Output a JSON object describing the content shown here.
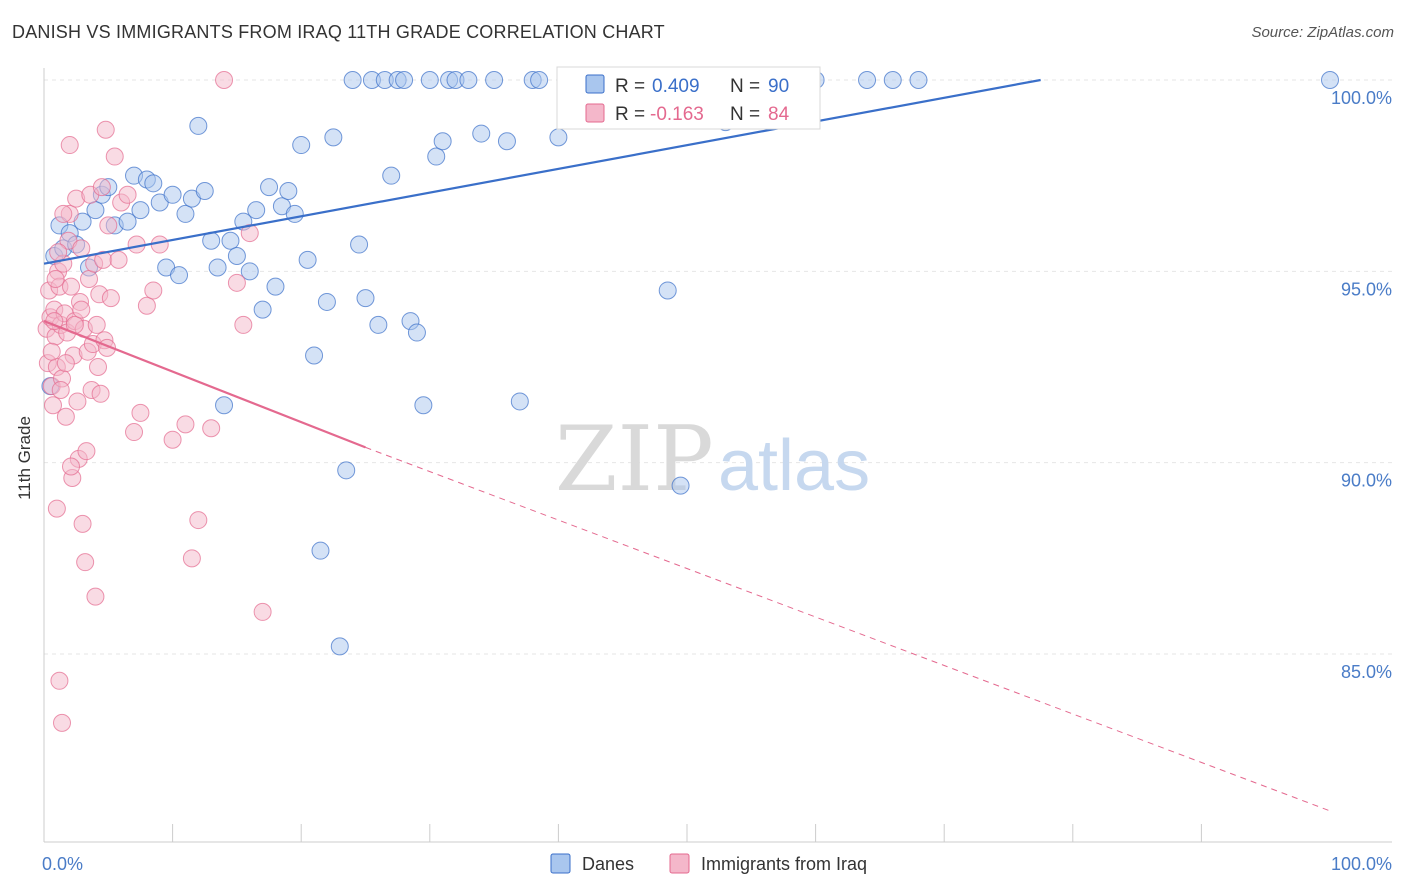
{
  "title": "DANISH VS IMMIGRANTS FROM IRAQ 11TH GRADE CORRELATION CHART",
  "source": "Source: ZipAtlas.com",
  "watermark": {
    "zip": "ZIP",
    "atlas": "atlas"
  },
  "colors": {
    "blue": "#3a6fc9",
    "blue_fill": "#a9c6ee",
    "pink": "#e4698f",
    "pink_fill": "#f4b7ca",
    "grid": "#e6e6e6"
  },
  "chart_data": {
    "type": "scatter",
    "title": "DANISH VS IMMIGRANTS FROM IRAQ 11TH GRADE CORRELATION CHART",
    "xlabel": "",
    "ylabel": "11th Grade",
    "xlim": [
      0,
      100
    ],
    "ylim": [
      80.7,
      100.7
    ],
    "x_ticks": [
      "0.0%",
      "100.0%"
    ],
    "y_ticks": [
      {
        "value": 100,
        "label": "100.0%"
      },
      {
        "value": 95,
        "label": "95.0%"
      },
      {
        "value": 90,
        "label": "90.0%"
      },
      {
        "value": 85,
        "label": "85.0%"
      }
    ],
    "grid": true,
    "legend_placement": "top-center",
    "legend": [
      {
        "r_label": "R =",
        "r_value": "0.409",
        "n_label": "N =",
        "n_value": "90"
      },
      {
        "r_label": "R =",
        "r_value": "-0.163",
        "n_label": "N =",
        "n_value": "84"
      }
    ],
    "series": [
      {
        "name": "Danes",
        "color": "#3a6fc9",
        "trend": {
          "x0": 0,
          "y0": 95.2,
          "x1": 77.5,
          "y1": 100.0,
          "dashed_to": null
        },
        "points": [
          [
            0.5,
            92.0
          ],
          [
            0.8,
            95.4
          ],
          [
            1.2,
            96.2
          ],
          [
            1.5,
            95.6
          ],
          [
            2.0,
            96.0
          ],
          [
            2.5,
            95.7
          ],
          [
            3.0,
            96.3
          ],
          [
            3.5,
            95.1
          ],
          [
            4.0,
            96.6
          ],
          [
            4.5,
            97.0
          ],
          [
            5.0,
            97.2
          ],
          [
            5.5,
            96.2
          ],
          [
            6.5,
            96.3
          ],
          [
            7.0,
            97.5
          ],
          [
            7.5,
            96.6
          ],
          [
            8.0,
            97.4
          ],
          [
            8.5,
            97.3
          ],
          [
            9.0,
            96.8
          ],
          [
            9.5,
            95.1
          ],
          [
            10.0,
            97.0
          ],
          [
            10.5,
            94.9
          ],
          [
            11.0,
            96.5
          ],
          [
            11.5,
            96.9
          ],
          [
            12.0,
            98.8
          ],
          [
            12.5,
            97.1
          ],
          [
            13.0,
            95.8
          ],
          [
            13.5,
            95.1
          ],
          [
            14.0,
            91.5
          ],
          [
            14.5,
            95.8
          ],
          [
            15.0,
            95.4
          ],
          [
            15.5,
            96.3
          ],
          [
            16.0,
            95.0
          ],
          [
            16.5,
            96.6
          ],
          [
            17.0,
            94.0
          ],
          [
            17.5,
            97.2
          ],
          [
            18.0,
            94.6
          ],
          [
            18.5,
            96.7
          ],
          [
            19.0,
            97.1
          ],
          [
            19.5,
            96.5
          ],
          [
            20.0,
            98.3
          ],
          [
            20.5,
            95.3
          ],
          [
            21.0,
            92.8
          ],
          [
            21.5,
            87.7
          ],
          [
            22.0,
            94.2
          ],
          [
            22.5,
            98.5
          ],
          [
            23.0,
            85.2
          ],
          [
            23.5,
            89.8
          ],
          [
            24.0,
            100.0
          ],
          [
            24.5,
            95.7
          ],
          [
            25.0,
            94.3
          ],
          [
            25.5,
            100.0
          ],
          [
            26.0,
            93.6
          ],
          [
            26.5,
            100.0
          ],
          [
            27.0,
            97.5
          ],
          [
            27.5,
            100.0
          ],
          [
            28.0,
            100.0
          ],
          [
            28.5,
            93.7
          ],
          [
            29.0,
            93.4
          ],
          [
            29.5,
            91.5
          ],
          [
            30.0,
            100.0
          ],
          [
            30.5,
            98.0
          ],
          [
            31.0,
            98.4
          ],
          [
            31.5,
            100.0
          ],
          [
            32.0,
            100.0
          ],
          [
            33.0,
            100.0
          ],
          [
            34.0,
            98.6
          ],
          [
            35.0,
            100.0
          ],
          [
            36.0,
            98.4
          ],
          [
            37.0,
            91.6
          ],
          [
            38.0,
            100.0
          ],
          [
            38.5,
            100.0
          ],
          [
            40.0,
            98.5
          ],
          [
            42.0,
            100.0
          ],
          [
            43.0,
            100.0
          ],
          [
            44.0,
            100.0
          ],
          [
            45.0,
            100.0
          ],
          [
            47.0,
            100.0
          ],
          [
            48.0,
            100.0
          ],
          [
            49.0,
            100.0
          ],
          [
            48.5,
            94.5
          ],
          [
            49.5,
            89.4
          ],
          [
            50.5,
            100.0
          ],
          [
            53.0,
            98.9
          ],
          [
            54.0,
            100.0
          ],
          [
            56.0,
            100.0
          ],
          [
            60.0,
            100.0
          ],
          [
            64.0,
            100.0
          ],
          [
            66.0,
            100.0
          ],
          [
            68.0,
            100.0
          ],
          [
            100.0,
            100.0
          ]
        ]
      },
      {
        "name": "Immigrants from Iraq",
        "color": "#e4698f",
        "trend": {
          "x0": 0,
          "y0": 93.7,
          "x1": 25.0,
          "y1": 90.4,
          "dashed_to": {
            "x": 100,
            "y": 80.9
          }
        },
        "points": [
          [
            0.2,
            93.5
          ],
          [
            0.3,
            92.6
          ],
          [
            0.4,
            94.5
          ],
          [
            0.5,
            93.8
          ],
          [
            0.6,
            92.0
          ],
          [
            0.7,
            91.5
          ],
          [
            0.8,
            94.0
          ],
          [
            0.9,
            93.3
          ],
          [
            1.0,
            92.5
          ],
          [
            1.1,
            95.0
          ],
          [
            1.2,
            94.6
          ],
          [
            1.3,
            93.6
          ],
          [
            1.4,
            92.2
          ],
          [
            1.5,
            95.2
          ],
          [
            1.6,
            93.9
          ],
          [
            1.7,
            91.2
          ],
          [
            1.8,
            93.4
          ],
          [
            1.9,
            95.8
          ],
          [
            2.0,
            96.5
          ],
          [
            2.1,
            94.6
          ],
          [
            2.2,
            89.6
          ],
          [
            2.3,
            92.8
          ],
          [
            2.4,
            93.7
          ],
          [
            2.5,
            96.9
          ],
          [
            2.6,
            91.6
          ],
          [
            2.7,
            90.1
          ],
          [
            2.8,
            94.2
          ],
          [
            2.9,
            95.6
          ],
          [
            3.0,
            88.4
          ],
          [
            3.1,
            93.5
          ],
          [
            3.2,
            87.4
          ],
          [
            3.3,
            90.3
          ],
          [
            3.4,
            92.9
          ],
          [
            3.5,
            94.8
          ],
          [
            3.6,
            97.0
          ],
          [
            3.7,
            91.9
          ],
          [
            3.8,
            93.1
          ],
          [
            3.9,
            95.2
          ],
          [
            4.0,
            86.5
          ],
          [
            4.1,
            93.6
          ],
          [
            4.2,
            92.5
          ],
          [
            4.3,
            94.4
          ],
          [
            4.4,
            91.8
          ],
          [
            4.5,
            97.2
          ],
          [
            4.6,
            95.3
          ],
          [
            4.7,
            93.2
          ],
          [
            4.8,
            98.7
          ],
          [
            4.9,
            93.0
          ],
          [
            5.0,
            96.2
          ],
          [
            5.2,
            94.3
          ],
          [
            5.5,
            98.0
          ],
          [
            5.8,
            95.3
          ],
          [
            6.0,
            96.8
          ],
          [
            6.5,
            97.0
          ],
          [
            7.0,
            90.8
          ],
          [
            7.2,
            95.7
          ],
          [
            7.5,
            91.3
          ],
          [
            8.0,
            94.1
          ],
          [
            8.5,
            94.5
          ],
          [
            9.0,
            95.7
          ],
          [
            10.0,
            90.6
          ],
          [
            11.0,
            91.0
          ],
          [
            11.5,
            87.5
          ],
          [
            12.0,
            88.5
          ],
          [
            13.0,
            90.9
          ],
          [
            14.0,
            100.0
          ],
          [
            15.0,
            94.7
          ],
          [
            15.5,
            93.6
          ],
          [
            16.0,
            96.0
          ],
          [
            17.0,
            86.1
          ],
          [
            1.0,
            88.8
          ],
          [
            1.2,
            84.3
          ],
          [
            1.4,
            83.2
          ],
          [
            2.0,
            98.3
          ],
          [
            1.5,
            96.5
          ],
          [
            0.8,
            93.7
          ],
          [
            1.1,
            95.5
          ],
          [
            2.4,
            93.6
          ],
          [
            2.9,
            94.0
          ],
          [
            0.6,
            92.9
          ],
          [
            1.7,
            92.6
          ],
          [
            2.1,
            89.9
          ],
          [
            1.3,
            91.9
          ],
          [
            0.9,
            94.8
          ]
        ]
      }
    ]
  }
}
